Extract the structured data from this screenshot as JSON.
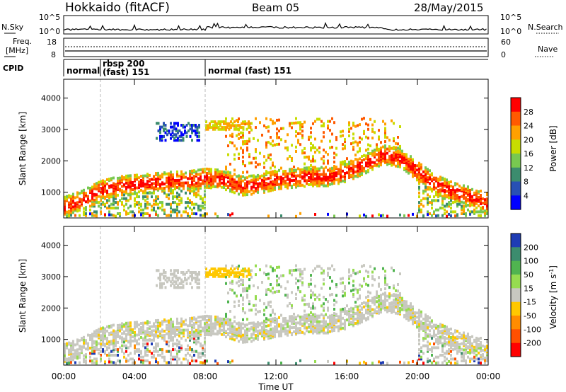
{
  "header": {
    "station": "Hokkaido (fitACF)",
    "beam": "Beam 05",
    "date": "28/May/2015"
  },
  "noise_panel": {
    "left_label": "N.Sky",
    "right_label": "N.Search",
    "left_ticks": [
      "10^5",
      "10^0"
    ],
    "right_ticks": [
      "10^5",
      "10^0"
    ]
  },
  "freq_panel": {
    "left_label_line1": "Freq.",
    "left_label_line2": "[MHz]",
    "right_label": "Nave",
    "left_ticks": [
      "18",
      "8"
    ],
    "right_ticks": [
      "60",
      "0"
    ]
  },
  "cpid_panel": {
    "label": "CPID",
    "segments": [
      {
        "text": "normal",
        "start_hour": 0.0
      },
      {
        "text": "rbsp 200",
        "start_hour": 1.7
      },
      {
        "text": "(fast) 151",
        "start_hour": 1.7
      },
      {
        "text": "normal (fast)  151",
        "start_hour": 8.0
      }
    ]
  },
  "chart_data": [
    {
      "type": "heatmap",
      "title": "",
      "xlabel": "Time UT",
      "ylabel": "Slant Range [km]",
      "xlim": [
        0,
        24
      ],
      "ylim": [
        180,
        4600
      ],
      "x_ticks": [
        "00:00",
        "04:00",
        "08:00",
        "12:00",
        "16:00",
        "20:00",
        "00:00"
      ],
      "y_ticks": [
        "1000",
        "2000",
        "3000",
        "4000"
      ],
      "colorbar_label": "Power [dB]",
      "colorbar_ticks": [
        "28",
        "24",
        "20",
        "16",
        "12",
        "8",
        "4"
      ],
      "colorbar_colors": [
        "#ff0000",
        "#ff5a00",
        "#ffa000",
        "#c8dc00",
        "#78c850",
        "#3c8c6e",
        "#2850b4",
        "#0000ff"
      ],
      "main_band": [
        [
          0,
          600
        ],
        [
          1,
          800
        ],
        [
          2,
          1100
        ],
        [
          3,
          1250
        ],
        [
          4,
          1300
        ],
        [
          5,
          1350
        ],
        [
          6,
          1400
        ],
        [
          7,
          1420
        ],
        [
          8,
          1500
        ],
        [
          9,
          1450
        ],
        [
          10,
          1250
        ],
        [
          11,
          1300
        ],
        [
          12,
          1450
        ],
        [
          13,
          1500
        ],
        [
          14,
          1550
        ],
        [
          15,
          1550
        ],
        [
          16,
          1700
        ],
        [
          17,
          1950
        ],
        [
          18,
          2250
        ],
        [
          19,
          2150
        ],
        [
          20,
          1700
        ],
        [
          21,
          1300
        ],
        [
          22,
          1050
        ],
        [
          23,
          900
        ],
        [
          24,
          700
        ]
      ]
    },
    {
      "type": "heatmap",
      "title": "",
      "xlabel": "Time UT",
      "ylabel": "Slant Range [km]",
      "xlim": [
        0,
        24
      ],
      "ylim": [
        180,
        4600
      ],
      "x_ticks": [
        "00:00",
        "04:00",
        "08:00",
        "12:00",
        "16:00",
        "20:00",
        "00:00"
      ],
      "y_ticks": [
        "1000",
        "2000",
        "3000",
        "4000"
      ],
      "colorbar_label": "Velocity [m s^-1]",
      "colorbar_ticks": [
        "200",
        "100",
        "50",
        "15",
        "-15",
        "-50",
        "-100",
        "-200"
      ],
      "colorbar_colors": [
        "#1e3cb4",
        "#3c8c6e",
        "#50b450",
        "#96dc50",
        "#c8c8c0",
        "#ffc800",
        "#ff8c00",
        "#ff5000",
        "#ff0000"
      ]
    }
  ],
  "cvd_panel_labels": {
    "power_unit": "Power [dB]",
    "velocity_unit_main": "Velocity [m s",
    "velocity_unit_exp": "-1",
    "velocity_unit_close": "]"
  }
}
